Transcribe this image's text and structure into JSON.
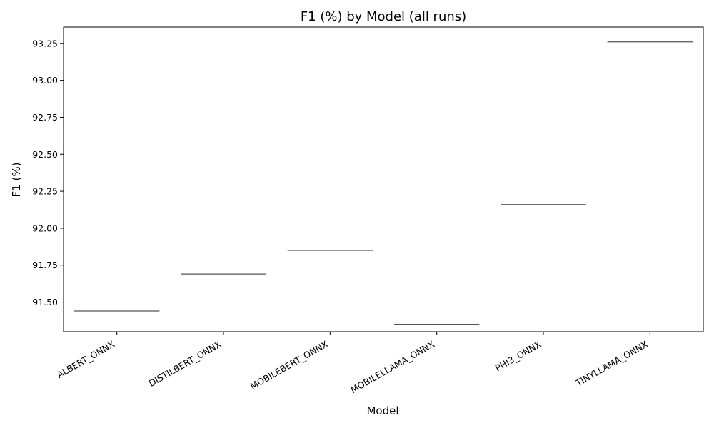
{
  "chart_data": {
    "type": "box",
    "title": "F1 (%) by Model (all runs)",
    "xlabel": "Model",
    "ylabel": "F1 (%)",
    "categories": [
      "ALBERT_ONNX",
      "DISTILBERT_ONNX",
      "MOBILEBERT_ONNX",
      "MOBILELLAMA_ONNX",
      "PHI3_ONNX",
      "TINYLLAMA_ONNX"
    ],
    "values": [
      91.44,
      91.69,
      91.85,
      91.35,
      92.16,
      93.26
    ],
    "ylim": [
      91.3,
      93.36
    ],
    "yticks": [
      "91.50",
      "91.75",
      "92.00",
      "92.25",
      "92.50",
      "92.75",
      "93.00",
      "93.25"
    ],
    "grid": false,
    "legend": "none",
    "colors": {
      "box_line": "#555555",
      "axis": "#000000"
    }
  }
}
